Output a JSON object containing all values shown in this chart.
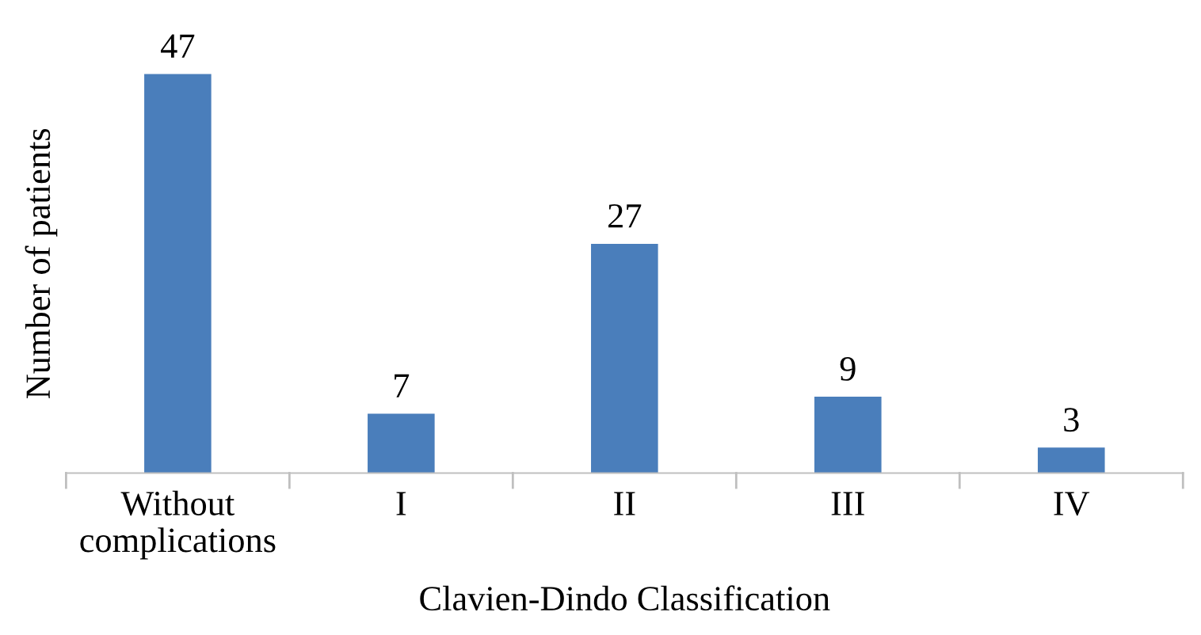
{
  "chart_data": {
    "type": "bar",
    "xlabel": "Clavien-Dindo Classification",
    "ylabel": "Number of patients",
    "categories": [
      "Without\ncomplications",
      "I",
      "II",
      "III",
      "IV"
    ],
    "values": [
      47,
      7,
      27,
      9,
      3
    ],
    "color": "#4a7ebb",
    "data_labels": true,
    "grid": false,
    "legend": false
  }
}
